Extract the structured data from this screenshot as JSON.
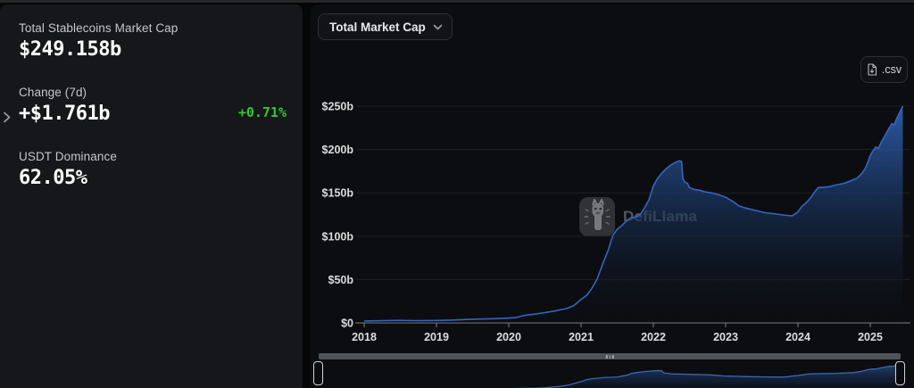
{
  "left_panel": {
    "metrics": [
      {
        "label": "Total Stablecoins Market Cap",
        "value": "$249.158b"
      },
      {
        "label": "Change (7d)",
        "value": "+$1.761b",
        "delta_pct": "+0.71%"
      },
      {
        "label": "USDT Dominance",
        "value": "62.05%"
      }
    ],
    "delta_color": "#2ecb2e"
  },
  "chart_panel": {
    "selector_label": "Total Market Cap",
    "csv_button_label": ".csv",
    "watermark": "DefiLlama"
  },
  "chart_data": {
    "type": "area",
    "title": "Total Stablecoins Market Cap",
    "unit": "USD billions",
    "xlim": [
      2018,
      2025.47
    ],
    "ylim": [
      0,
      257
    ],
    "yticks": [
      0,
      50,
      100,
      150,
      200,
      250
    ],
    "ytick_labels": [
      "$0",
      "$50b",
      "$100b",
      "$150b",
      "$200b",
      "$250b"
    ],
    "xticks": [
      2018,
      2019,
      2020,
      2021,
      2022,
      2023,
      2024,
      2025
    ],
    "xtick_labels": [
      "2018",
      "2019",
      "2020",
      "2021",
      "2022",
      "2023",
      "2024",
      "2025"
    ],
    "line_color": "#3566bd",
    "grid": true,
    "legend": false,
    "points": [
      [
        2018.0,
        2.2
      ],
      [
        2018.15,
        2.4
      ],
      [
        2018.3,
        2.7
      ],
      [
        2018.5,
        2.9
      ],
      [
        2018.7,
        2.6
      ],
      [
        2018.85,
        2.7
      ],
      [
        2019.0,
        2.8
      ],
      [
        2019.2,
        3.2
      ],
      [
        2019.4,
        3.9
      ],
      [
        2019.6,
        4.4
      ],
      [
        2019.8,
        4.8
      ],
      [
        2020.0,
        5.6
      ],
      [
        2020.1,
        6.2
      ],
      [
        2020.18,
        7.8
      ],
      [
        2020.22,
        8.6
      ],
      [
        2020.35,
        10.0
      ],
      [
        2020.5,
        11.8
      ],
      [
        2020.65,
        14.0
      ],
      [
        2020.8,
        16.5
      ],
      [
        2020.9,
        20.0
      ],
      [
        2021.0,
        27
      ],
      [
        2021.08,
        32
      ],
      [
        2021.15,
        40
      ],
      [
        2021.22,
        50
      ],
      [
        2021.3,
        68
      ],
      [
        2021.38,
        85
      ],
      [
        2021.44,
        101
      ],
      [
        2021.5,
        108
      ],
      [
        2021.56,
        112
      ],
      [
        2021.62,
        117
      ],
      [
        2021.68,
        121
      ],
      [
        2021.75,
        122
      ],
      [
        2021.82,
        125
      ],
      [
        2021.88,
        133
      ],
      [
        2021.94,
        142
      ],
      [
        2022.0,
        158
      ],
      [
        2022.06,
        167
      ],
      [
        2022.12,
        173
      ],
      [
        2022.18,
        178
      ],
      [
        2022.24,
        182
      ],
      [
        2022.3,
        185
      ],
      [
        2022.36,
        187
      ],
      [
        2022.39,
        186
      ],
      [
        2022.41,
        166
      ],
      [
        2022.44,
        162
      ],
      [
        2022.47,
        161
      ],
      [
        2022.5,
        156
      ],
      [
        2022.56,
        154
      ],
      [
        2022.64,
        153
      ],
      [
        2022.72,
        151
      ],
      [
        2022.8,
        150
      ],
      [
        2022.9,
        148
      ],
      [
        2023.0,
        145
      ],
      [
        2023.06,
        142
      ],
      [
        2023.12,
        139
      ],
      [
        2023.18,
        135
      ],
      [
        2023.25,
        133
      ],
      [
        2023.35,
        131
      ],
      [
        2023.45,
        129
      ],
      [
        2023.55,
        127
      ],
      [
        2023.65,
        126
      ],
      [
        2023.75,
        125
      ],
      [
        2023.85,
        124
      ],
      [
        2023.92,
        123.5
      ],
      [
        2024.0,
        128
      ],
      [
        2024.05,
        134
      ],
      [
        2024.12,
        139
      ],
      [
        2024.18,
        145
      ],
      [
        2024.24,
        152
      ],
      [
        2024.28,
        156
      ],
      [
        2024.35,
        156.5
      ],
      [
        2024.42,
        157
      ],
      [
        2024.5,
        158.5
      ],
      [
        2024.58,
        160
      ],
      [
        2024.64,
        161
      ],
      [
        2024.7,
        163
      ],
      [
        2024.76,
        165
      ],
      [
        2024.82,
        167
      ],
      [
        2024.88,
        172
      ],
      [
        2024.93,
        178
      ],
      [
        2024.97,
        186
      ],
      [
        2025.0,
        193
      ],
      [
        2025.04,
        199
      ],
      [
        2025.08,
        203
      ],
      [
        2025.11,
        201
      ],
      [
        2025.15,
        208
      ],
      [
        2025.19,
        214
      ],
      [
        2025.23,
        220
      ],
      [
        2025.27,
        226
      ],
      [
        2025.3,
        230
      ],
      [
        2025.33,
        228
      ],
      [
        2025.36,
        235
      ],
      [
        2025.39,
        240
      ],
      [
        2025.42,
        245
      ],
      [
        2025.45,
        250
      ]
    ]
  }
}
